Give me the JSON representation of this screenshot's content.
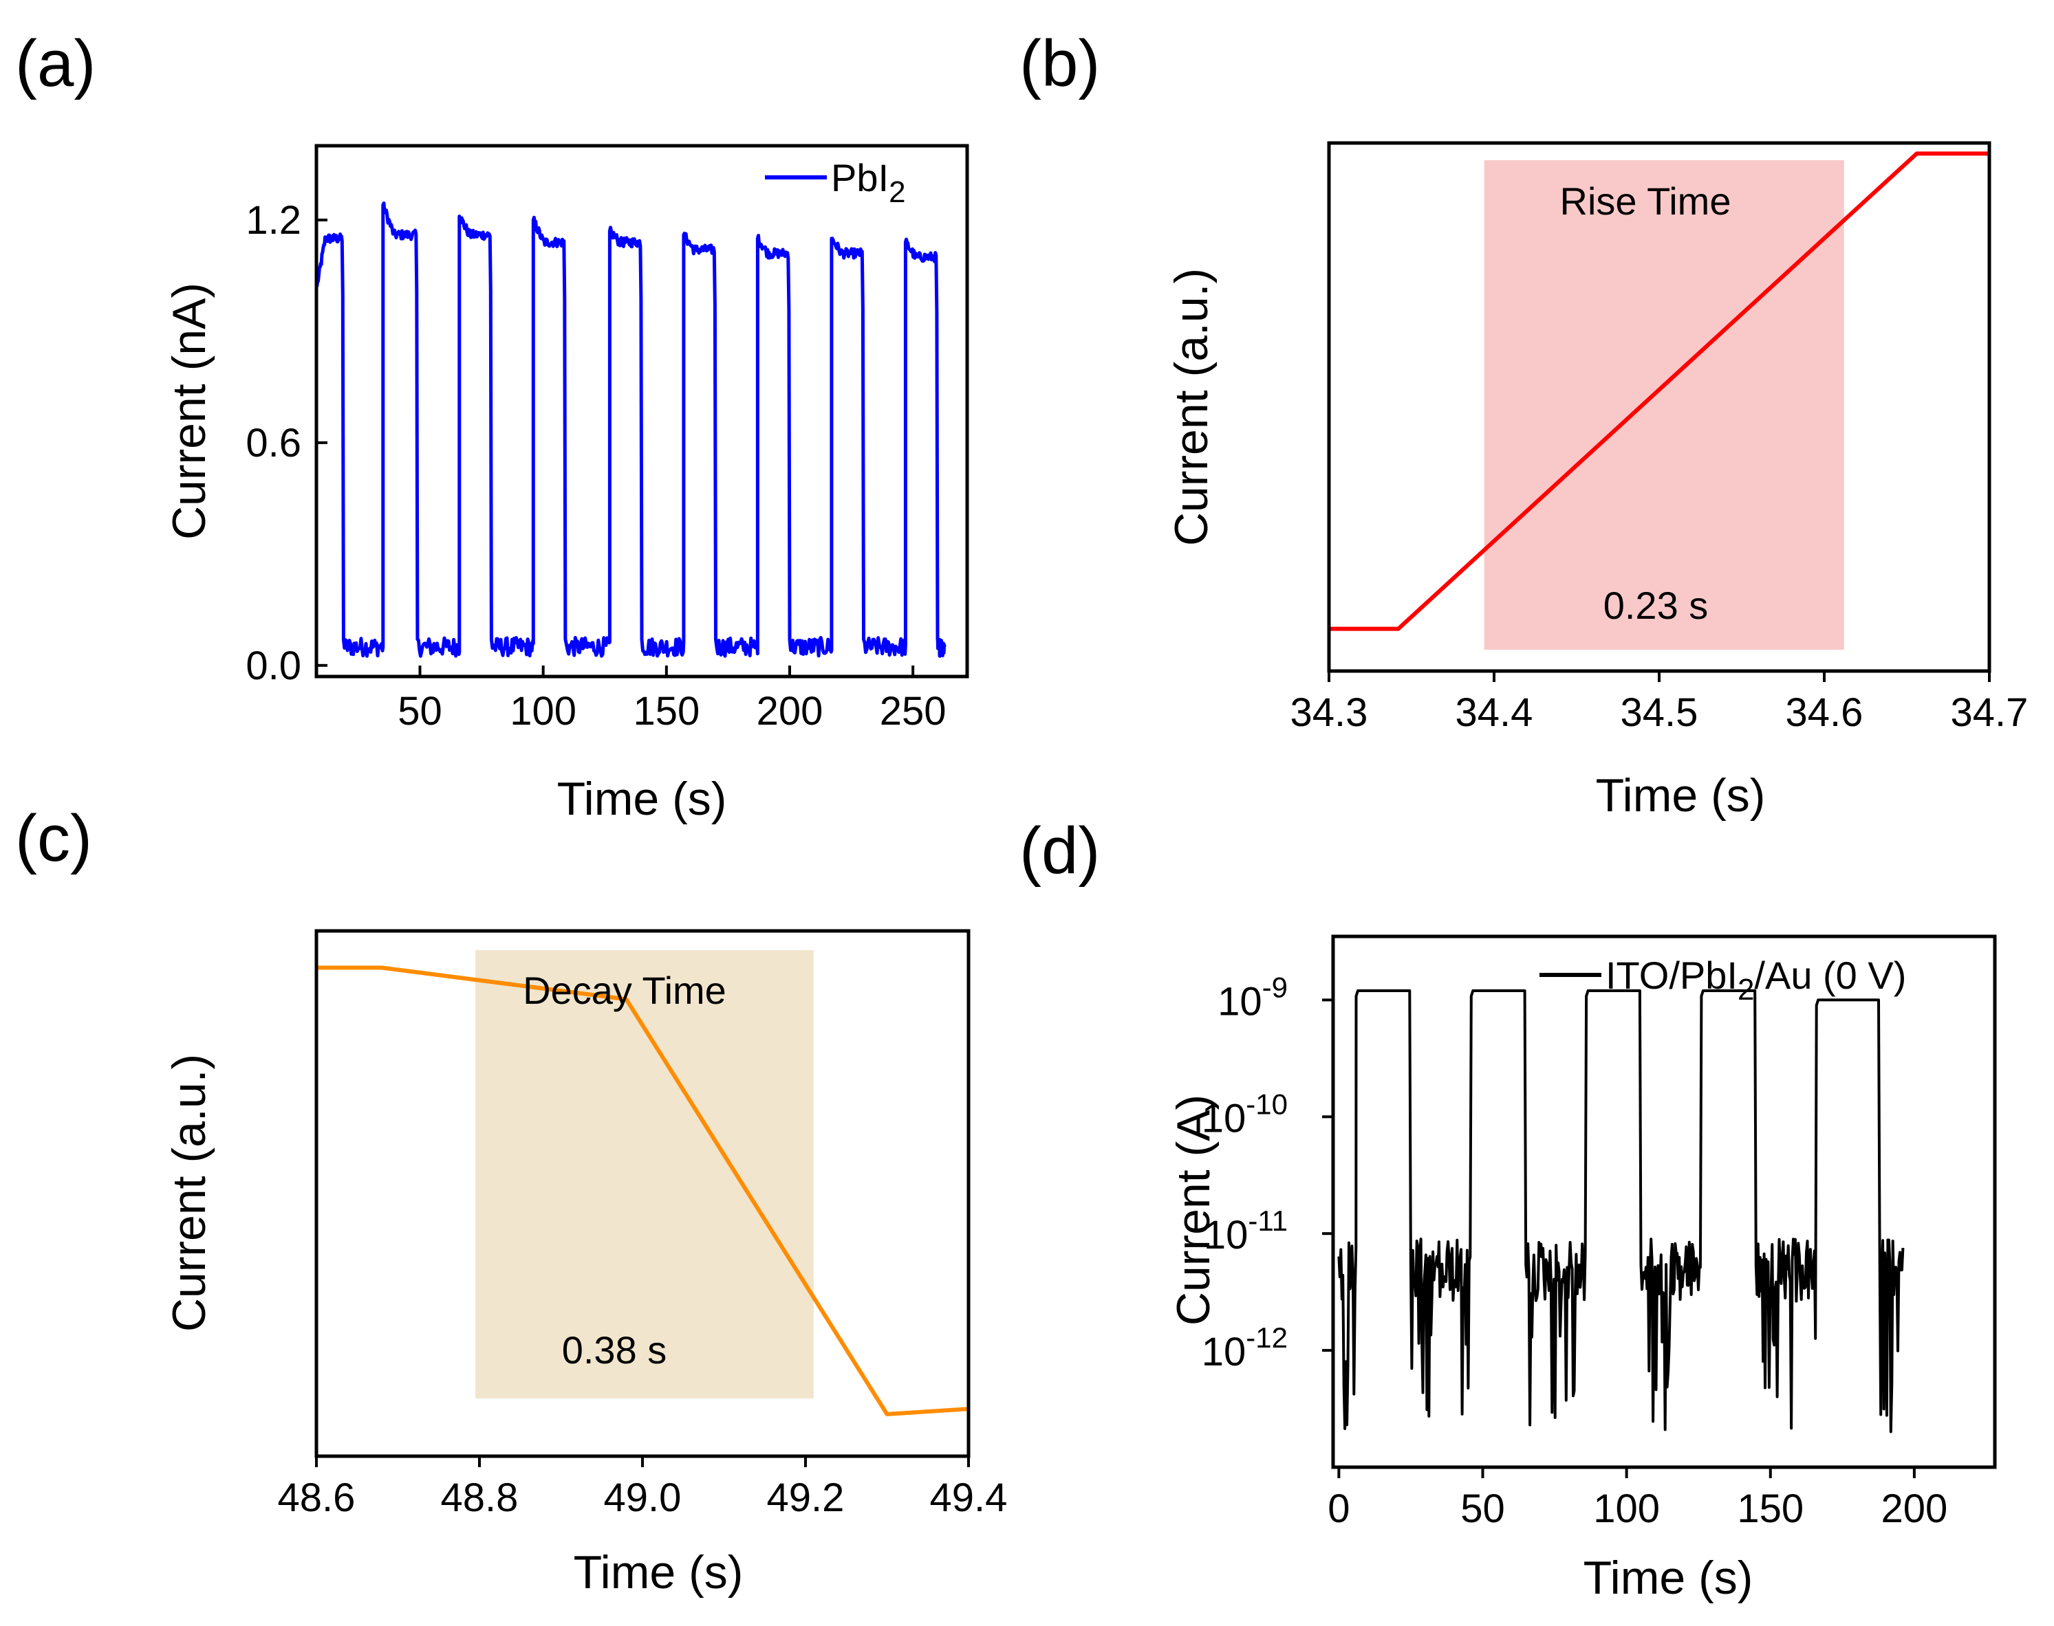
{
  "colors": {
    "a": "#0000ff",
    "b": "#ff0000",
    "c": "#ff8c00",
    "d": "#000000",
    "b_box": "#f9c9c9",
    "c_box": "#f1e5cd"
  },
  "chart_data": [
    {
      "panel_label": "(a)",
      "type": "line",
      "xlabel": "Time (s)",
      "ylabel": "Current (nA)",
      "xlim": [
        8,
        272
      ],
      "ylim": [
        -0.03,
        1.4
      ],
      "xticks": [
        "50",
        "100",
        "150",
        "200",
        "250"
      ],
      "yticks": [
        "0.0",
        "0.6",
        "1.2"
      ],
      "legend": {
        "name": "PbI",
        "sub": "2",
        "position": "top-right"
      },
      "series": [
        {
          "name": "PbI2",
          "cycles": [
            {
              "on": 8,
              "off": 19,
              "high_start": 1.02,
              "high_end": 1.15
            },
            {
              "on": 35,
              "off": 49,
              "high_start": 1.24,
              "high_end": 1.16
            },
            {
              "on": 66,
              "off": 79,
              "high_start": 1.21,
              "high_end": 1.16
            },
            {
              "on": 96,
              "off": 109,
              "high_start": 1.2,
              "high_end": 1.14
            },
            {
              "on": 127,
              "off": 140,
              "high_start": 1.17,
              "high_end": 1.14
            },
            {
              "on": 157,
              "off": 170,
              "high_start": 1.16,
              "high_end": 1.12
            },
            {
              "on": 187,
              "off": 200,
              "high_start": 1.15,
              "high_end": 1.11
            },
            {
              "on": 217,
              "off": 230,
              "high_start": 1.15,
              "high_end": 1.11
            },
            {
              "on": 247,
              "off": 260,
              "high_start": 1.14,
              "high_end": 1.1
            }
          ],
          "end_time": 263,
          "low_level": 0.05
        }
      ]
    },
    {
      "panel_label": "(b)",
      "type": "line",
      "xlabel": "Time (s)",
      "ylabel": "Current (a.u.)",
      "xlim": [
        34.3,
        34.7
      ],
      "ylim": [
        0,
        1
      ],
      "xticks": [
        "34.3",
        "34.4",
        "34.5",
        "34.6",
        "34.7"
      ],
      "x": [
        34.3,
        34.342,
        34.656,
        34.7
      ],
      "y": [
        0.08,
        0.08,
        0.98,
        0.98
      ],
      "shade": {
        "x0": 34.394,
        "x1": 34.612
      },
      "annotations": [
        "Rise Time",
        "0.23 s"
      ]
    },
    {
      "panel_label": "(c)",
      "type": "line",
      "xlabel": "Time (s)",
      "ylabel": "Current (a.u.)",
      "xlim": [
        48.6,
        49.4
      ],
      "ylim": [
        0,
        1
      ],
      "xticks": [
        "48.6",
        "48.8",
        "49.0",
        "49.2",
        "49.4"
      ],
      "x": [
        48.6,
        48.68,
        48.98,
        49.3,
        49.4
      ],
      "y": [
        0.93,
        0.93,
        0.87,
        0.08,
        0.09
      ],
      "shade": {
        "x0": 48.795,
        "x1": 49.21
      },
      "annotations": [
        "Decay Time",
        "0.38 s"
      ]
    },
    {
      "panel_label": "(d)",
      "type": "line",
      "xlabel": "Time (s)",
      "ylabel": "Current (A)",
      "log_y": true,
      "xlim": [
        -2,
        228
      ],
      "ylim": [
        1e-13,
        3.5e-09
      ],
      "xticks": [
        "0",
        "50",
        "100",
        "150",
        "200"
      ],
      "yticks": [
        {
          "base": "10",
          "exp": "-9"
        },
        {
          "base": "10",
          "exp": "-10"
        },
        {
          "base": "10",
          "exp": "-11"
        },
        {
          "base": "10",
          "exp": "-12"
        }
      ],
      "legend": {
        "prefix": "ITO/PbI",
        "sub": "2",
        "suffix": "/Au (0 V)",
        "position": "top-right"
      },
      "series": [
        {
          "name": "ITO/PbI2/Au (0 V)",
          "cycles": [
            {
              "on": 6,
              "off": 25,
              "high": 1.2e-09
            },
            {
              "on": 46,
              "off": 65,
              "high": 1.2e-09
            },
            {
              "on": 86,
              "off": 105,
              "high": 1.2e-09
            },
            {
              "on": 126,
              "off": 145,
              "high": 1.2e-09
            },
            {
              "on": 166,
              "off": 188,
              "high": 1e-09
            }
          ],
          "start_time": 0,
          "end_time": 196,
          "dark_level": 9e-12
        }
      ]
    }
  ]
}
